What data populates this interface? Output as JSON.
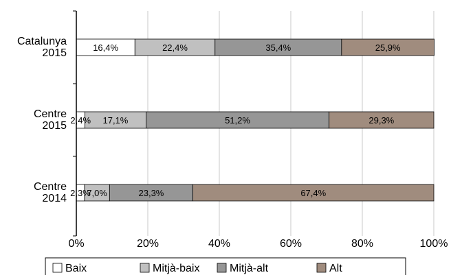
{
  "chart_data": {
    "type": "bar",
    "orientation": "horizontal",
    "stacked": true,
    "percent_stacked": true,
    "categories": [
      [
        "Catalunya",
        "2015"
      ],
      [
        "Centre",
        "2015"
      ],
      [
        "Centre",
        "2014"
      ]
    ],
    "series": [
      {
        "name": "Baix",
        "color": "#ffffff",
        "values": [
          16.4,
          2.4,
          2.3
        ],
        "labels": [
          "16,4%",
          "2,4%",
          "2,3%"
        ]
      },
      {
        "name": "Mitjà-baix",
        "color": "#c0c0c0",
        "values": [
          22.4,
          17.1,
          7.0
        ],
        "labels": [
          "22,4%",
          "17,1%",
          "7,0%"
        ]
      },
      {
        "name": "Mitjà-alt",
        "color": "#969696",
        "values": [
          35.4,
          51.2,
          23.3
        ],
        "labels": [
          "35,4%",
          "51,2%",
          "23,3%"
        ]
      },
      {
        "name": "Alt",
        "color": "#a08c7e",
        "values": [
          25.9,
          29.3,
          67.4
        ],
        "labels": [
          "25,9%",
          "29,3%",
          "67,4%"
        ]
      }
    ],
    "xticks": [
      "0%",
      "20%",
      "40%",
      "60%",
      "80%",
      "100%"
    ],
    "xlim": [
      0,
      100
    ],
    "grid": true,
    "legend": "bottom"
  }
}
